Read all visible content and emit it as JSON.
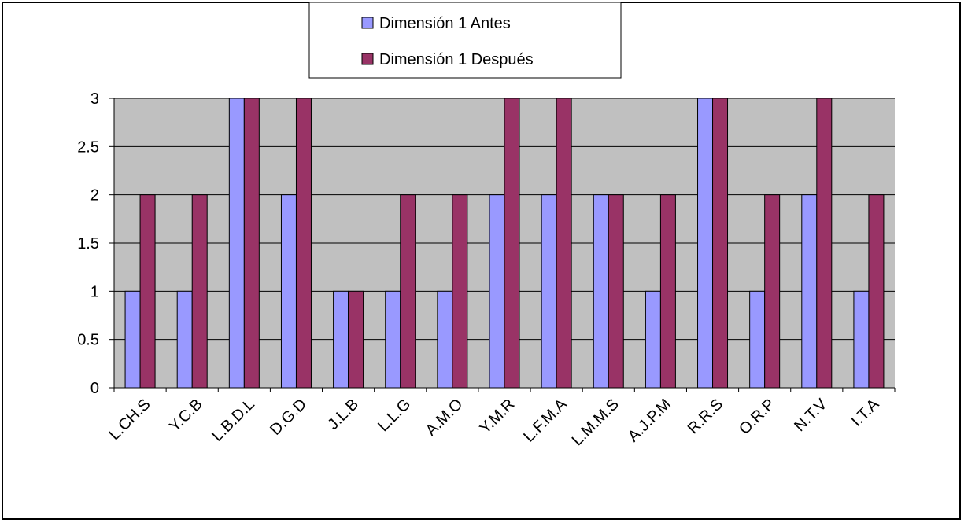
{
  "chart_data": {
    "type": "bar",
    "categories": [
      "L.CH.S",
      "Y.C.B",
      "L.B.D.L",
      "D.G.D",
      "J.L.B",
      "L.L.G",
      "A.M.O",
      "Y.M.R",
      "L.F.M.A",
      "L.M.M.S",
      "A.J.P.M",
      "R.R.S",
      "O.R.P",
      "N.T.V",
      "I.T.A"
    ],
    "series": [
      {
        "name": "Dimensión 1 Antes",
        "color": "#9999ff",
        "values": [
          1,
          1,
          3,
          2,
          1,
          1,
          1,
          2,
          2,
          2,
          1,
          3,
          1,
          2,
          1
        ]
      },
      {
        "name": "Dimensión 1 Después",
        "color": "#993366",
        "values": [
          2,
          2,
          3,
          3,
          1,
          2,
          2,
          3,
          3,
          2,
          2,
          3,
          2,
          3,
          2
        ]
      }
    ],
    "yticks": [
      "0",
      "0.5",
      "1",
      "1.5",
      "2",
      "2.5",
      "3"
    ],
    "ylim": [
      0,
      3
    ],
    "title": "",
    "xlabel": "",
    "ylabel": "",
    "grid": true,
    "legend_position": "top-center",
    "plot_background": "#c0c0c0"
  }
}
